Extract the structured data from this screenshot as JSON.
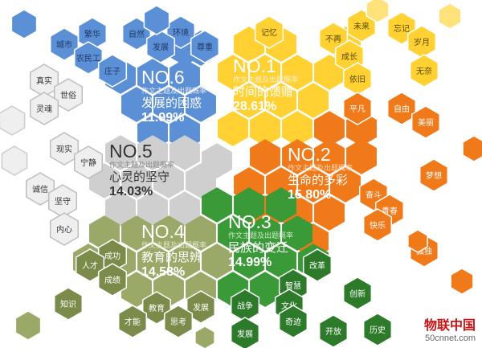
{
  "colors": {
    "blue": "#5b8fd6",
    "blue_light": "#c9d6ee",
    "yellow": "#ffd133",
    "yellow_light": "#ffe37a",
    "orange": "#f07a1a",
    "orange_dark": "#e06010",
    "gray": "#cfcfcf",
    "gray_light": "#efefef",
    "olive": "#9aa868",
    "olive_dark": "#7a8b4a",
    "green": "#3b9a38",
    "green_dark": "#2c7a2a"
  },
  "categories": [
    {
      "id": "no6",
      "no": "NO.6",
      "sub": "作文主题及出题概率",
      "name": "发展的困惑",
      "pct": "11.99%"
    },
    {
      "id": "no1",
      "no": "NO.1",
      "sub": "作文主题及出题概率",
      "name": "时间的馈赠",
      "pct": "28.61%"
    },
    {
      "id": "no5",
      "no": "NO.5",
      "sub": "作文主题及出题概率",
      "name": "心灵的坚守",
      "pct": "14.03%"
    },
    {
      "id": "no2",
      "no": "NO.2",
      "sub": "作文主题及出题概率",
      "name": "生命的多彩",
      "pct": "15.80%"
    },
    {
      "id": "no4",
      "no": "NO.4",
      "sub": "作文主题及出题概率",
      "name": "教育的思辨",
      "pct": "14.58%"
    },
    {
      "id": "no3",
      "no": "NO.3",
      "sub": "作文主题及出题概率",
      "name": "民族的变迁",
      "pct": "14.99%"
    }
  ],
  "keywords": {
    "blue": [
      "繁华",
      "城市",
      "农民工",
      "庄子",
      "自然",
      "环境",
      "发展",
      "尊重"
    ],
    "yellow": [
      "记忆",
      "未来",
      "不再",
      "成长",
      "依旧",
      "忘记",
      "岁月",
      "无奈"
    ],
    "gray": [
      "真实",
      "世俗",
      "灵魂",
      "现实",
      "宁静",
      "诚信",
      "坚守",
      "内心"
    ],
    "orange": [
      "平凡",
      "自由",
      "美丽",
      "梦想",
      "奋斗",
      "青春",
      "快乐",
      "孤独"
    ],
    "olive": [
      "成功",
      "人才",
      "成绩",
      "知识",
      "教育",
      "发展",
      "才能",
      "思考"
    ],
    "green": [
      "改革",
      "智慧",
      "创新",
      "战争",
      "文化",
      "奇迹",
      "发展",
      "开放",
      "历史"
    ]
  },
  "logo": {
    "name": "物联中国",
    "url": "50cnnet.com"
  }
}
